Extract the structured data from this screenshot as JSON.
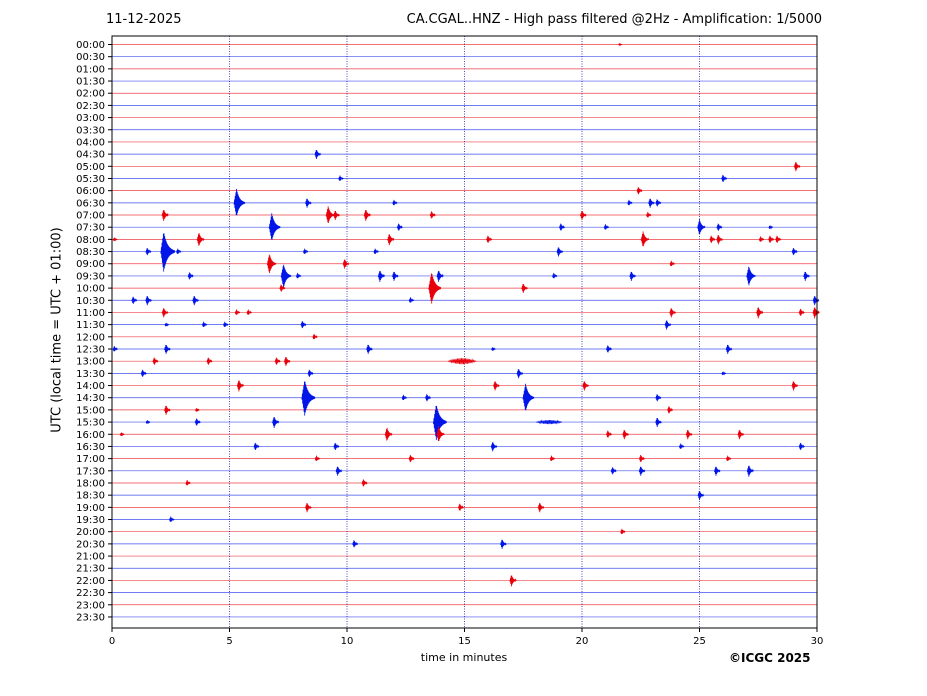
{
  "header": {
    "date": "11-12-2025",
    "title": "CA.CGAL..HNZ - High pass filtered @2Hz - Amplification: 1/5000"
  },
  "footer": {
    "credit": "©ICGC 2025"
  },
  "chart_data": {
    "type": "line",
    "title": "CA.CGAL..HNZ - High pass filtered @2Hz - Amplification: 1/5000",
    "xlabel": "time in minutes",
    "ylabel": "UTC (local time = UTC + 01:00)",
    "xlim": [
      0,
      30
    ],
    "xticks": [
      0,
      5,
      10,
      15,
      20,
      25,
      30
    ],
    "vertical_gridlines_at": [
      5,
      10,
      15,
      20,
      25
    ],
    "grid": "vertical dotted",
    "row_colors": [
      "#e8000b",
      "#0015e8"
    ],
    "rows": [
      "00:00",
      "00:30",
      "01:00",
      "01:30",
      "02:00",
      "02:30",
      "03:00",
      "03:30",
      "04:00",
      "04:30",
      "05:00",
      "05:30",
      "06:00",
      "06:30",
      "07:00",
      "07:30",
      "08:00",
      "08:30",
      "09:00",
      "09:30",
      "10:00",
      "10:30",
      "11:00",
      "11:30",
      "12:00",
      "12:30",
      "13:00",
      "13:30",
      "14:00",
      "14:30",
      "15:00",
      "15:30",
      "16:00",
      "16:30",
      "17:00",
      "17:30",
      "18:00",
      "18:30",
      "19:00",
      "19:30",
      "20:00",
      "20:30",
      "21:00",
      "21:30",
      "22:00",
      "22:30",
      "23:00",
      "23:30"
    ],
    "events": [
      {
        "row": "00:00",
        "t": 21.6,
        "amp": 1
      },
      {
        "row": "04:30",
        "t": 8.7,
        "amp": 5
      },
      {
        "row": "05:00",
        "t": 29.1,
        "amp": 5
      },
      {
        "row": "05:30",
        "t": 9.7,
        "amp": 3
      },
      {
        "row": "05:30",
        "t": 26.0,
        "amp": 4
      },
      {
        "row": "06:00",
        "t": 22.4,
        "amp": 4
      },
      {
        "row": "06:30",
        "t": 5.3,
        "amp": 14
      },
      {
        "row": "06:30",
        "t": 8.3,
        "amp": 5
      },
      {
        "row": "06:30",
        "t": 12.0,
        "amp": 3
      },
      {
        "row": "06:30",
        "t": 22.0,
        "amp": 3
      },
      {
        "row": "06:30",
        "t": 22.9,
        "amp": 5
      },
      {
        "row": "06:30",
        "t": 23.2,
        "amp": 4
      },
      {
        "row": "07:00",
        "t": 2.2,
        "amp": 6
      },
      {
        "row": "07:00",
        "t": 9.2,
        "amp": 9
      },
      {
        "row": "07:00",
        "t": 9.5,
        "amp": 5
      },
      {
        "row": "07:00",
        "t": 10.8,
        "amp": 6
      },
      {
        "row": "07:00",
        "t": 13.6,
        "amp": 4
      },
      {
        "row": "07:00",
        "t": 20.0,
        "amp": 5
      },
      {
        "row": "07:00",
        "t": 22.8,
        "amp": 3
      },
      {
        "row": "07:30",
        "t": 6.8,
        "amp": 14
      },
      {
        "row": "07:30",
        "t": 12.2,
        "amp": 4
      },
      {
        "row": "07:30",
        "t": 19.1,
        "amp": 4
      },
      {
        "row": "07:30",
        "t": 21.0,
        "amp": 3
      },
      {
        "row": "07:30",
        "t": 25.0,
        "amp": 8
      },
      {
        "row": "07:30",
        "t": 25.8,
        "amp": 4
      },
      {
        "row": "07:30",
        "t": 28.0,
        "amp": 2
      },
      {
        "row": "08:00",
        "t": 0.1,
        "amp": 2
      },
      {
        "row": "08:00",
        "t": 3.7,
        "amp": 7
      },
      {
        "row": "08:00",
        "t": 11.8,
        "amp": 6
      },
      {
        "row": "08:00",
        "t": 16.0,
        "amp": 4
      },
      {
        "row": "08:00",
        "t": 22.6,
        "amp": 8
      },
      {
        "row": "08:00",
        "t": 25.5,
        "amp": 4
      },
      {
        "row": "08:00",
        "t": 25.8,
        "amp": 5
      },
      {
        "row": "08:00",
        "t": 27.6,
        "amp": 3
      },
      {
        "row": "08:00",
        "t": 28.0,
        "amp": 4
      },
      {
        "row": "08:00",
        "t": 28.3,
        "amp": 4
      },
      {
        "row": "08:30",
        "t": 1.5,
        "amp": 4
      },
      {
        "row": "08:30",
        "t": 2.2,
        "amp": 20
      },
      {
        "row": "08:30",
        "t": 2.8,
        "amp": 3
      },
      {
        "row": "08:30",
        "t": 8.2,
        "amp": 3
      },
      {
        "row": "08:30",
        "t": 11.2,
        "amp": 3
      },
      {
        "row": "08:30",
        "t": 19.0,
        "amp": 5
      },
      {
        "row": "08:30",
        "t": 29.0,
        "amp": 4
      },
      {
        "row": "09:00",
        "t": 6.7,
        "amp": 10
      },
      {
        "row": "09:00",
        "t": 9.9,
        "amp": 5
      },
      {
        "row": "09:00",
        "t": 23.8,
        "amp": 3
      },
      {
        "row": "09:30",
        "t": 3.3,
        "amp": 4
      },
      {
        "row": "09:30",
        "t": 7.3,
        "amp": 12
      },
      {
        "row": "09:30",
        "t": 7.9,
        "amp": 3
      },
      {
        "row": "09:30",
        "t": 11.4,
        "amp": 6
      },
      {
        "row": "09:30",
        "t": 12.0,
        "amp": 5
      },
      {
        "row": "09:30",
        "t": 13.9,
        "amp": 6
      },
      {
        "row": "09:30",
        "t": 18.8,
        "amp": 3
      },
      {
        "row": "09:30",
        "t": 22.1,
        "amp": 5
      },
      {
        "row": "09:30",
        "t": 27.1,
        "amp": 10
      },
      {
        "row": "09:30",
        "t": 29.5,
        "amp": 5
      },
      {
        "row": "10:00",
        "t": 7.2,
        "amp": 4
      },
      {
        "row": "10:00",
        "t": 13.6,
        "amp": 16
      },
      {
        "row": "10:00",
        "t": 17.5,
        "amp": 5
      },
      {
        "row": "10:30",
        "t": 0.9,
        "amp": 4
      },
      {
        "row": "10:30",
        "t": 1.5,
        "amp": 5
      },
      {
        "row": "10:30",
        "t": 3.5,
        "amp": 5
      },
      {
        "row": "10:30",
        "t": 12.7,
        "amp": 3
      },
      {
        "row": "10:30",
        "t": 29.9,
        "amp": 5
      },
      {
        "row": "11:00",
        "t": 2.2,
        "amp": 5
      },
      {
        "row": "11:00",
        "t": 5.3,
        "amp": 3
      },
      {
        "row": "11:00",
        "t": 5.8,
        "amp": 3
      },
      {
        "row": "11:00",
        "t": 23.8,
        "amp": 5
      },
      {
        "row": "11:00",
        "t": 27.5,
        "amp": 6
      },
      {
        "row": "11:00",
        "t": 29.3,
        "amp": 4
      },
      {
        "row": "11:00",
        "t": 29.9,
        "amp": 6
      },
      {
        "row": "11:30",
        "t": 2.3,
        "amp": 2
      },
      {
        "row": "11:30",
        "t": 3.9,
        "amp": 3
      },
      {
        "row": "11:30",
        "t": 4.8,
        "amp": 3
      },
      {
        "row": "11:30",
        "t": 8.1,
        "amp": 4
      },
      {
        "row": "11:30",
        "t": 23.6,
        "amp": 5
      },
      {
        "row": "12:00",
        "t": 8.6,
        "amp": 3
      },
      {
        "row": "12:30",
        "t": 0.1,
        "amp": 3
      },
      {
        "row": "12:30",
        "t": 2.3,
        "amp": 5
      },
      {
        "row": "12:30",
        "t": 10.9,
        "amp": 5
      },
      {
        "row": "12:30",
        "t": 16.2,
        "amp": 2
      },
      {
        "row": "12:30",
        "t": 21.1,
        "amp": 4
      },
      {
        "row": "12:30",
        "t": 26.2,
        "amp": 5
      },
      {
        "row": "13:00",
        "t": 1.8,
        "amp": 4
      },
      {
        "row": "13:00",
        "t": 4.1,
        "amp": 4
      },
      {
        "row": "13:00",
        "t": 7.0,
        "amp": 4
      },
      {
        "row": "13:00",
        "t": 7.4,
        "amp": 5
      },
      {
        "row": "13:00",
        "t": 14.9,
        "amp": 3,
        "dur": 1.2
      },
      {
        "row": "13:30",
        "t": 1.3,
        "amp": 4
      },
      {
        "row": "13:30",
        "t": 8.4,
        "amp": 4
      },
      {
        "row": "13:30",
        "t": 17.3,
        "amp": 5
      },
      {
        "row": "13:30",
        "t": 26.0,
        "amp": 2
      },
      {
        "row": "14:00",
        "t": 5.4,
        "amp": 6
      },
      {
        "row": "14:00",
        "t": 16.3,
        "amp": 5
      },
      {
        "row": "14:00",
        "t": 20.1,
        "amp": 5
      },
      {
        "row": "14:00",
        "t": 29.0,
        "amp": 5
      },
      {
        "row": "14:30",
        "t": 8.2,
        "amp": 18
      },
      {
        "row": "14:30",
        "t": 12.4,
        "amp": 3
      },
      {
        "row": "14:30",
        "t": 13.4,
        "amp": 4
      },
      {
        "row": "14:30",
        "t": 17.6,
        "amp": 14
      },
      {
        "row": "14:30",
        "t": 23.2,
        "amp": 4
      },
      {
        "row": "15:00",
        "t": 2.3,
        "amp": 5
      },
      {
        "row": "15:00",
        "t": 3.6,
        "amp": 2
      },
      {
        "row": "15:00",
        "t": 23.7,
        "amp": 4
      },
      {
        "row": "15:30",
        "t": 1.5,
        "amp": 2
      },
      {
        "row": "15:30",
        "t": 3.6,
        "amp": 4
      },
      {
        "row": "15:30",
        "t": 6.9,
        "amp": 6
      },
      {
        "row": "15:30",
        "t": 13.8,
        "amp": 18
      },
      {
        "row": "15:30",
        "t": 18.6,
        "amp": 2,
        "dur": 1.1
      },
      {
        "row": "15:30",
        "t": 23.2,
        "amp": 5
      },
      {
        "row": "16:00",
        "t": 0.4,
        "amp": 2
      },
      {
        "row": "16:00",
        "t": 11.7,
        "amp": 7
      },
      {
        "row": "16:00",
        "t": 13.9,
        "amp": 8
      },
      {
        "row": "16:00",
        "t": 21.1,
        "amp": 4
      },
      {
        "row": "16:00",
        "t": 21.8,
        "amp": 5
      },
      {
        "row": "16:00",
        "t": 24.5,
        "amp": 5
      },
      {
        "row": "16:00",
        "t": 26.7,
        "amp": 5
      },
      {
        "row": "16:30",
        "t": 6.1,
        "amp": 4
      },
      {
        "row": "16:30",
        "t": 9.5,
        "amp": 4
      },
      {
        "row": "16:30",
        "t": 16.2,
        "amp": 5
      },
      {
        "row": "16:30",
        "t": 24.2,
        "amp": 3
      },
      {
        "row": "16:30",
        "t": 29.3,
        "amp": 4
      },
      {
        "row": "17:00",
        "t": 8.7,
        "amp": 3
      },
      {
        "row": "17:00",
        "t": 12.7,
        "amp": 4
      },
      {
        "row": "17:00",
        "t": 18.7,
        "amp": 3
      },
      {
        "row": "17:00",
        "t": 22.5,
        "amp": 4
      },
      {
        "row": "17:00",
        "t": 26.2,
        "amp": 3
      },
      {
        "row": "17:30",
        "t": 9.6,
        "amp": 5
      },
      {
        "row": "17:30",
        "t": 21.3,
        "amp": 4
      },
      {
        "row": "17:30",
        "t": 22.5,
        "amp": 5
      },
      {
        "row": "17:30",
        "t": 25.7,
        "amp": 5
      },
      {
        "row": "17:30",
        "t": 27.1,
        "amp": 6
      },
      {
        "row": "18:00",
        "t": 3.2,
        "amp": 3
      },
      {
        "row": "18:00",
        "t": 10.7,
        "amp": 4
      },
      {
        "row": "18:30",
        "t": 25.0,
        "amp": 5
      },
      {
        "row": "19:00",
        "t": 8.3,
        "amp": 5
      },
      {
        "row": "19:00",
        "t": 14.8,
        "amp": 4
      },
      {
        "row": "19:00",
        "t": 18.2,
        "amp": 5
      },
      {
        "row": "19:30",
        "t": 2.5,
        "amp": 3
      },
      {
        "row": "20:00",
        "t": 21.7,
        "amp": 3
      },
      {
        "row": "20:30",
        "t": 10.3,
        "amp": 4
      },
      {
        "row": "20:30",
        "t": 16.6,
        "amp": 5
      },
      {
        "row": "22:00",
        "t": 17.0,
        "amp": 6
      }
    ]
  }
}
